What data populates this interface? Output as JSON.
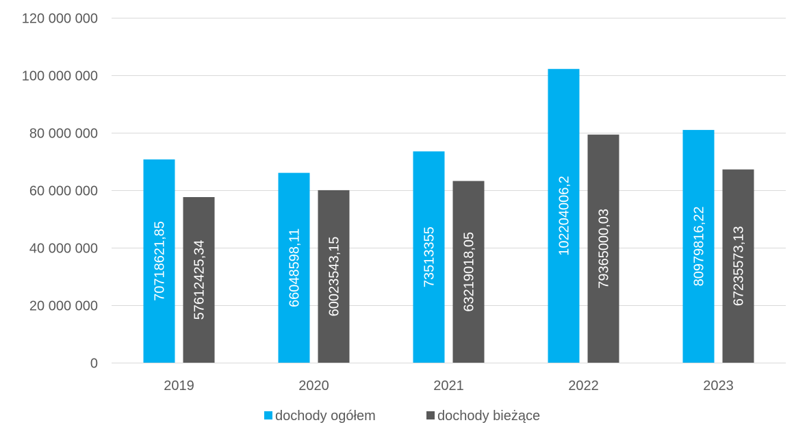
{
  "chart_data": {
    "type": "bar",
    "title": "",
    "xlabel": "",
    "ylabel": "",
    "categories": [
      "2019",
      "2020",
      "2021",
      "2022",
      "2023"
    ],
    "series": [
      {
        "name": "dochody ogółem",
        "color": "#00B0F0",
        "values": [
          70718621.85,
          66048598.11,
          73513355,
          102204006.2,
          80979816.22
        ],
        "labels": [
          "70718621,85",
          "66048598,11",
          "73513355",
          "102204006,2",
          "80979816,22"
        ]
      },
      {
        "name": "dochody bieżące",
        "color": "#595959",
        "values": [
          57612425.34,
          60023543.15,
          63219018.05,
          79365000.03,
          67235573.13
        ],
        "labels": [
          "57612425,34",
          "60023543,15",
          "63219018,05",
          "79365000,03",
          "67235573,13"
        ]
      }
    ],
    "ylim": [
      0,
      120000000
    ],
    "yticks": [
      0,
      20000000,
      40000000,
      60000000,
      80000000,
      100000000,
      120000000
    ],
    "ytick_labels": [
      "0",
      "20 000 000",
      "40 000 000",
      "60 000 000",
      "80 000 000",
      "100 000 000",
      "120 000 000"
    ],
    "grid": true,
    "gridline_color": "#D9D9D9",
    "legend": "bottom",
    "data_label_color": "#ffffff",
    "axis_text_color": "#595959"
  }
}
